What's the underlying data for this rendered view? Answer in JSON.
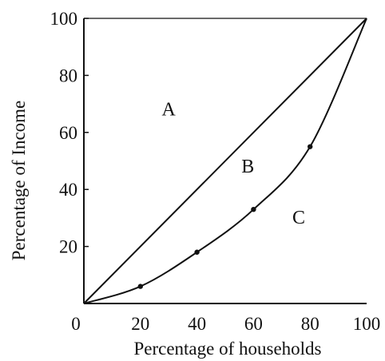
{
  "chart_data": {
    "type": "line",
    "xlabel": "Percentage of households",
    "ylabel": "Percentage of Income",
    "xlim": [
      0,
      100
    ],
    "ylim": [
      0,
      100
    ],
    "x_ticks": [
      "0",
      "20",
      "40",
      "60",
      "80",
      "100"
    ],
    "y_ticks": [
      "20",
      "40",
      "60",
      "80",
      "100"
    ],
    "grid": false,
    "series": [
      {
        "role": "line-of-equality",
        "x": [
          0,
          100
        ],
        "y": [
          0,
          100
        ]
      },
      {
        "role": "lorenz-curve",
        "x": [
          0,
          20,
          40,
          60,
          80,
          100
        ],
        "y": [
          0,
          6,
          18,
          33,
          55,
          100
        ],
        "markers": true
      }
    ],
    "annotations": [
      {
        "text": "A",
        "x": 30,
        "y": 66
      },
      {
        "text": "B",
        "x": 58,
        "y": 46
      },
      {
        "text": "C",
        "x": 76,
        "y": 28
      }
    ],
    "colors": {
      "lines": "#111111",
      "background": "#ffffff"
    }
  }
}
